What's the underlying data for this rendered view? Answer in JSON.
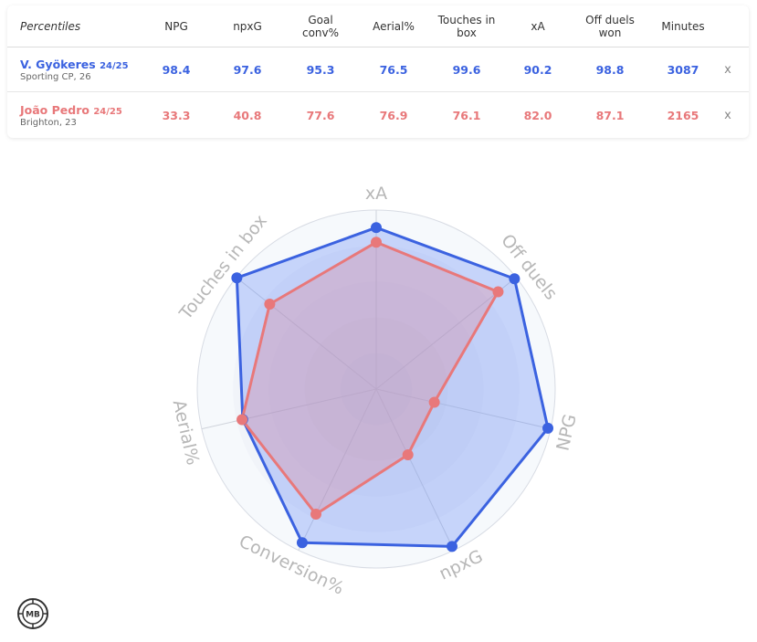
{
  "table": {
    "header_label": "Percentiles",
    "columns": [
      {
        "line1": "NPG",
        "line2": ""
      },
      {
        "line1": "npxG",
        "line2": ""
      },
      {
        "line1": "Goal",
        "line2": "conv%"
      },
      {
        "line1": "Aerial%",
        "line2": ""
      },
      {
        "line1": "Touches in",
        "line2": "box"
      },
      {
        "line1": "xA",
        "line2": ""
      },
      {
        "line1": "Off duels",
        "line2": "won"
      },
      {
        "line1": "Minutes",
        "line2": ""
      }
    ],
    "remove_label": "x"
  },
  "players": [
    {
      "name": "V. Gyökeres",
      "season": "24/25",
      "team": "Sporting CP, 26",
      "color": "#3b62e0",
      "values": [
        "98.4",
        "97.6",
        "95.3",
        "76.5",
        "99.6",
        "90.2",
        "98.8",
        "3087"
      ]
    },
    {
      "name": "João Pedro",
      "season": "24/25",
      "team": "Brighton, 23",
      "color": "#e8787a",
      "values": [
        "33.3",
        "40.8",
        "77.6",
        "76.9",
        "76.1",
        "82.0",
        "87.1",
        "2165"
      ]
    }
  ],
  "chart_data": {
    "type": "radar",
    "axes": [
      "xA",
      "Off duels",
      "NPG",
      "npxG",
      "Conversion%",
      "Aerial%",
      "Touches in box"
    ],
    "range": [
      0,
      100
    ],
    "series": [
      {
        "name": "V. Gyökeres",
        "values": [
          90.2,
          98.8,
          98.4,
          97.6,
          95.3,
          76.5,
          99.6
        ],
        "color": "#3b62e0"
      },
      {
        "name": "João Pedro",
        "values": [
          82.0,
          87.1,
          33.3,
          40.8,
          77.6,
          76.9,
          76.1
        ],
        "color": "#e8787a"
      }
    ]
  },
  "logo": {
    "text": "MB"
  }
}
